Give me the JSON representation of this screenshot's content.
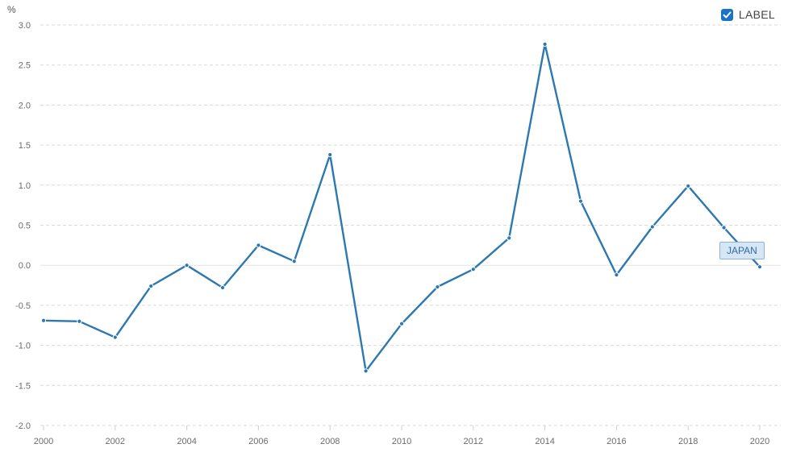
{
  "unit": "%",
  "legend": {
    "label": "LABEL",
    "checked": true,
    "checkbox_color": "#1a73c8"
  },
  "colors": {
    "line": "#2e78b0",
    "grid": "#d9d9d9",
    "zero_line": "#e6e6e6"
  },
  "chart_data": {
    "type": "line",
    "ylabel": "%",
    "ylim": [
      -2.0,
      3.0
    ],
    "yticks": [
      "3.0",
      "2.5",
      "2.0",
      "1.5",
      "1.0",
      "0.5",
      "0.0",
      "-0.5",
      "-1.0",
      "-1.5",
      "-2.0"
    ],
    "xlim": [
      2000,
      2020
    ],
    "xticks": [
      "2000",
      "2002",
      "2004",
      "2006",
      "2008",
      "2010",
      "2012",
      "2014",
      "2016",
      "2018",
      "2020"
    ],
    "grid": true,
    "series": [
      {
        "name": "JAPAN",
        "color": "#2e78b0",
        "x": [
          2000,
          2001,
          2002,
          2003,
          2004,
          2005,
          2006,
          2007,
          2008,
          2009,
          2010,
          2011,
          2012,
          2013,
          2014,
          2015,
          2016,
          2017,
          2018,
          2019,
          2020
        ],
        "values": [
          -0.69,
          -0.7,
          -0.9,
          -0.26,
          0.0,
          -0.28,
          0.25,
          0.05,
          1.38,
          -1.32,
          -0.73,
          -0.27,
          -0.05,
          0.34,
          2.76,
          0.8,
          -0.12,
          0.48,
          0.99,
          0.47,
          -0.02
        ]
      }
    ]
  }
}
